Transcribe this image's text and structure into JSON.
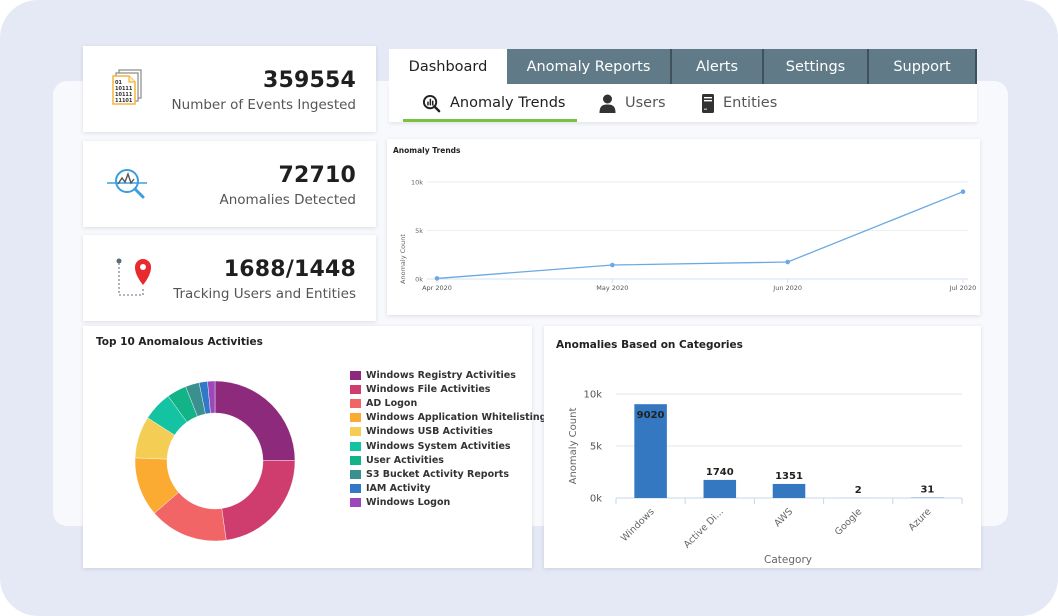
{
  "stats": [
    {
      "value": "359554",
      "label": "Number of Events Ingested",
      "icon": "binary-files-icon"
    },
    {
      "value": "72710",
      "label": "Anomalies Detected",
      "icon": "anomaly-search-icon"
    },
    {
      "value": "1688/1448",
      "label": "Tracking Users and Entities",
      "icon": "location-tracking-icon"
    }
  ],
  "tabs": [
    {
      "label": "Dashboard",
      "active": true
    },
    {
      "label": "Anomaly Reports",
      "active": false
    },
    {
      "label": "Alerts",
      "active": false
    },
    {
      "label": "Settings",
      "active": false
    },
    {
      "label": "Support",
      "active": false
    }
  ],
  "subtabs": [
    {
      "label": "Anomaly Trends",
      "icon": "chart-search-icon",
      "active": true
    },
    {
      "label": "Users",
      "icon": "user-icon",
      "active": false
    },
    {
      "label": "Entities",
      "icon": "server-icon",
      "active": false
    }
  ],
  "colors": {
    "tab_bg": "#607a87",
    "active_underline": "#7ac142",
    "line": "#6aa9e3",
    "bar": "#3378c0",
    "frame": "#e5e9f5"
  },
  "chart_data": [
    {
      "type": "line",
      "title": "Anomaly Trends",
      "xlabel": "",
      "ylabel": "Anomaly Count",
      "x": [
        "Apr 2020",
        "May 2020",
        "Jun 2020",
        "Jul 2020"
      ],
      "values": [
        60,
        1440,
        1750,
        9000
      ],
      "yticks": [
        "0k",
        "5k",
        "10k"
      ],
      "ylim": [
        0,
        10000
      ],
      "grid": true
    },
    {
      "type": "pie",
      "title": "Top 10 Anomalous Activities",
      "donut": true,
      "legend": "right",
      "categories": [
        "Windows Registry Activities",
        "Windows File Activities",
        "AD Logon",
        "Windows Application Whitelisting",
        "Windows USB Activities",
        "Windows System Activities",
        "User Activities",
        "S3 Bucket Activity Reports",
        "IAM Activity",
        "Windows Logon"
      ],
      "values": [
        25,
        23,
        16,
        12,
        8.5,
        6,
        4,
        2.8,
        1.7,
        1.5
      ],
      "colors": [
        "#8e2a7b",
        "#cf3d6e",
        "#f26566",
        "#fbab32",
        "#f4cd55",
        "#14c3a2",
        "#12b387",
        "#3a8f8f",
        "#3178c6",
        "#9b48bb"
      ]
    },
    {
      "type": "bar",
      "title": "Anomalies Based on Categories",
      "xlabel": "Category",
      "ylabel": "Anomaly Count",
      "categories": [
        "Windows",
        "Active Di...",
        "AWS",
        "Google",
        "Azure"
      ],
      "values": [
        9020,
        1740,
        1351,
        2,
        31
      ],
      "data_labels": [
        "9020",
        "1740",
        "1351",
        "2",
        "31"
      ],
      "yticks": [
        "0k",
        "5k",
        "10k"
      ],
      "ylim": [
        0,
        10000
      ],
      "grid": true
    }
  ]
}
